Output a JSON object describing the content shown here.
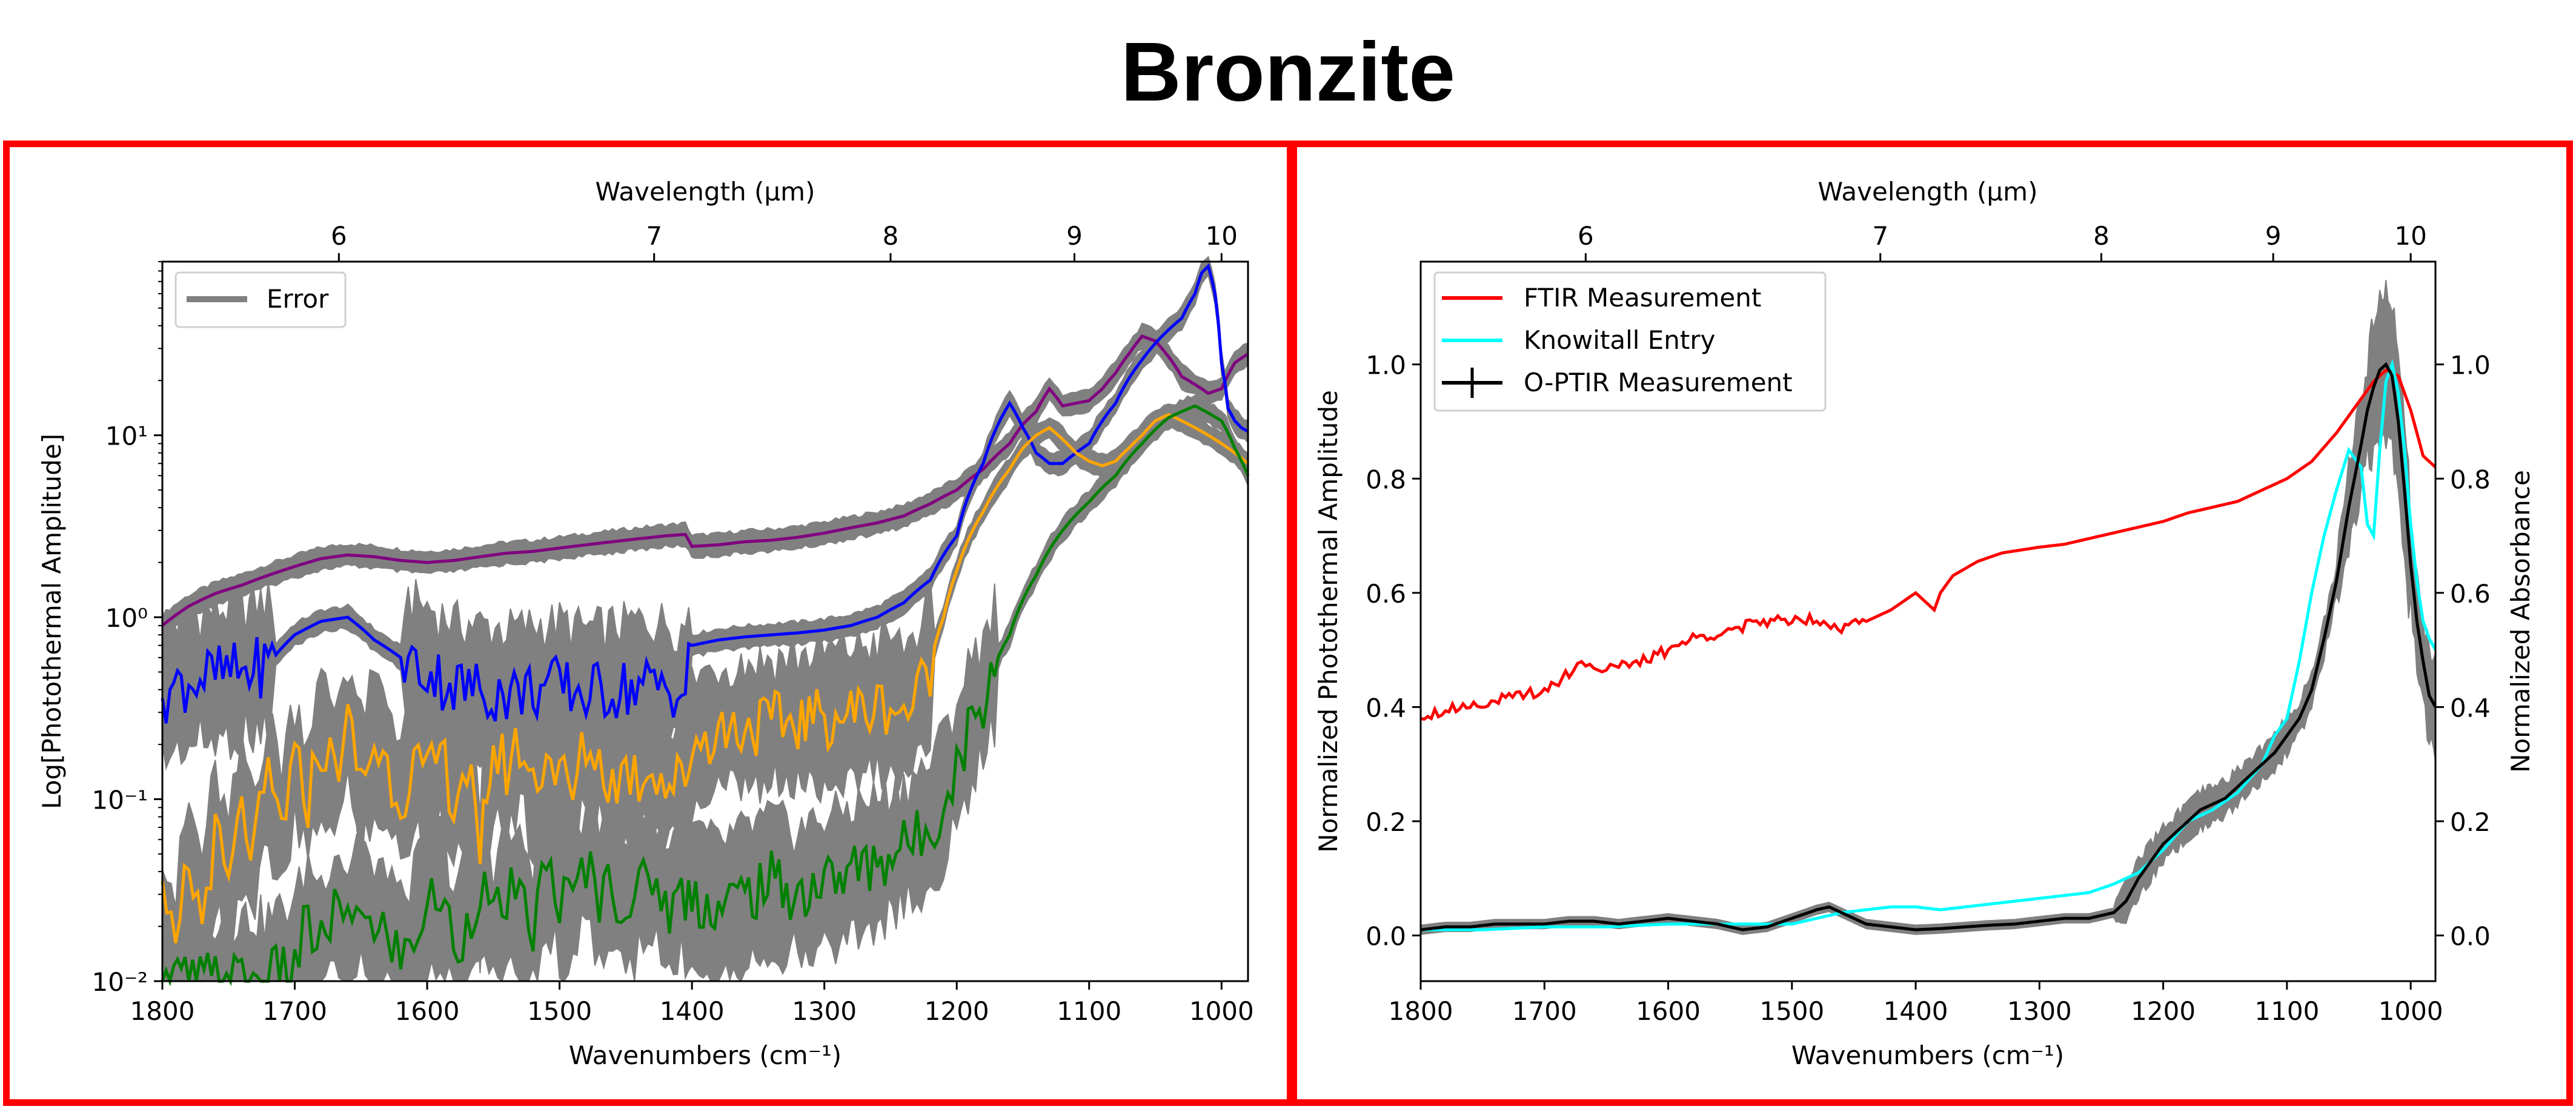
{
  "title": "Bronzite",
  "left_panel": {
    "legend": [
      "Error"
    ],
    "ylabel": "Log[Photothermal Amplitude]",
    "xlabel": "Wavenumbers (cm⁻¹)",
    "top_xlabel": "Wavelength (μm)"
  },
  "right_panel": {
    "legend": [
      "FTIR Measurement",
      "Knowitall Entry",
      "O-PTIR Measurement"
    ],
    "ylabel_left": "Normalized Photothermal Amplitude",
    "ylabel_right": "Normalized Absorbance",
    "xlabel": "Wavenumbers (cm⁻¹)",
    "top_xlabel": "Wavelength (μm)"
  },
  "chart_data": [
    {
      "type": "line",
      "xlabel": "Wavenumbers (cm⁻¹)",
      "ylabel": "Log[Photothermal Amplitude]",
      "top_xlabel": "Wavelength (μm)",
      "xlim": [
        1800,
        980
      ],
      "ylim": [
        0.01,
        90
      ],
      "yscale": "log",
      "x_ticks": [
        1800,
        1700,
        1600,
        1500,
        1400,
        1300,
        1200,
        1100,
        1000
      ],
      "y_ticks": [
        0.01,
        0.1,
        1,
        10
      ],
      "y_tick_labels": [
        "10⁻²",
        "10⁻¹",
        "10⁰",
        "10¹"
      ],
      "top_ticks": [
        6,
        7,
        8,
        9,
        10
      ],
      "legend": [
        "Error"
      ],
      "legend_position": "top-left",
      "colors": {
        "purple": "#800080",
        "blue": "#0000ff",
        "orange": "#ffa500",
        "green": "#008000",
        "error": "#808080"
      },
      "series": [
        {
          "color": "purple",
          "x": [
            1800,
            1780,
            1760,
            1740,
            1720,
            1700,
            1680,
            1660,
            1640,
            1620,
            1600,
            1580,
            1560,
            1540,
            1520,
            1500,
            1480,
            1460,
            1440,
            1420,
            1405,
            1400,
            1380,
            1360,
            1340,
            1320,
            1300,
            1280,
            1260,
            1240,
            1220,
            1200,
            1180,
            1160,
            1150,
            1140,
            1130,
            1120,
            1110,
            1100,
            1090,
            1080,
            1070,
            1060,
            1050,
            1040,
            1030,
            1020,
            1010,
            1000,
            990,
            980
          ],
          "y": [
            0.9,
            1.15,
            1.35,
            1.5,
            1.7,
            1.9,
            2.1,
            2.2,
            2.15,
            2.05,
            2.0,
            2.05,
            2.15,
            2.25,
            2.3,
            2.4,
            2.5,
            2.6,
            2.7,
            2.8,
            2.85,
            2.45,
            2.5,
            2.6,
            2.65,
            2.75,
            2.9,
            3.1,
            3.3,
            3.6,
            4.2,
            5.0,
            6.5,
            9.0,
            11.5,
            13.5,
            18.0,
            14.5,
            15.0,
            15.5,
            18.0,
            22.0,
            28.0,
            35.0,
            33.0,
            27.0,
            21.0,
            19.0,
            17.0,
            18.0,
            25.0,
            28.0
          ]
        },
        {
          "color": "blue",
          "x": [
            1800,
            1780,
            1760,
            1740,
            1720,
            1700,
            1680,
            1660,
            1640,
            1620,
            1600,
            1580,
            1560,
            1540,
            1520,
            1500,
            1480,
            1460,
            1440,
            1420,
            1405,
            1400,
            1380,
            1360,
            1340,
            1320,
            1300,
            1280,
            1260,
            1240,
            1220,
            1200,
            1180,
            1170,
            1160,
            1150,
            1140,
            1130,
            1120,
            1100,
            1080,
            1060,
            1050,
            1040,
            1030,
            1020,
            1015,
            1010,
            1005,
            1000,
            995,
            990,
            985,
            980
          ],
          "y": [
            0.38,
            0.45,
            0.48,
            0.5,
            0.55,
            0.8,
            0.95,
            1.0,
            0.75,
            0.6,
            0.5,
            0.42,
            0.4,
            0.38,
            0.4,
            0.42,
            0.38,
            0.4,
            0.42,
            0.42,
            0.38,
            0.7,
            0.75,
            0.78,
            0.8,
            0.82,
            0.85,
            0.9,
            1.0,
            1.2,
            1.6,
            2.8,
            7.0,
            11.0,
            15.0,
            11.0,
            8.0,
            7.0,
            7.0,
            9.0,
            15.0,
            26.0,
            32.0,
            38.0,
            44.0,
            60.0,
            78.0,
            85.0,
            60.0,
            25.0,
            14.0,
            12.0,
            11.0,
            10.5
          ]
        },
        {
          "color": "orange",
          "x": [
            1800,
            1790,
            1780,
            1770,
            1760,
            1750,
            1740,
            1730,
            1720,
            1710,
            1700,
            1690,
            1680,
            1670,
            1660,
            1650,
            1640,
            1630,
            1620,
            1610,
            1600,
            1590,
            1580,
            1570,
            1560,
            1555,
            1550,
            1540,
            1530,
            1520,
            1510,
            1500,
            1490,
            1480,
            1470,
            1460,
            1450,
            1440,
            1430,
            1420,
            1405,
            1400,
            1390,
            1380,
            1360,
            1340,
            1320,
            1300,
            1280,
            1260,
            1250,
            1240,
            1230,
            1220,
            1210,
            1200,
            1180,
            1160,
            1150,
            1140,
            1130,
            1120,
            1110,
            1100,
            1090,
            1080,
            1070,
            1060,
            1050,
            1040,
            1030,
            1020,
            1010,
            1000,
            990,
            980
          ],
          "y": [
            0.025,
            0.012,
            0.04,
            0.02,
            0.06,
            0.03,
            0.08,
            0.05,
            0.12,
            0.07,
            0.15,
            0.1,
            0.2,
            0.14,
            0.25,
            0.12,
            0.2,
            0.15,
            0.1,
            0.16,
            0.12,
            0.18,
            0.1,
            0.15,
            0.03,
            0.12,
            0.18,
            0.15,
            0.2,
            0.12,
            0.18,
            0.14,
            0.1,
            0.2,
            0.16,
            0.12,
            0.15,
            0.13,
            0.16,
            0.12,
            0.13,
            0.2,
            0.22,
            0.24,
            0.25,
            0.26,
            0.27,
            0.28,
            0.3,
            0.32,
            0.34,
            0.3,
            0.36,
            0.55,
            1.0,
            1.8,
            3.8,
            6.5,
            8.5,
            10.0,
            11.0,
            9.5,
            8.0,
            7.2,
            6.8,
            7.2,
            8.5,
            10.0,
            12.0,
            13.0,
            12.0,
            11.0,
            10.0,
            9.0,
            8.0,
            7.0
          ]
        },
        {
          "color": "green",
          "x": [
            1800,
            1780,
            1760,
            1740,
            1720,
            1700,
            1690,
            1680,
            1670,
            1660,
            1650,
            1640,
            1630,
            1620,
            1610,
            1600,
            1590,
            1580,
            1570,
            1560,
            1550,
            1540,
            1530,
            1520,
            1510,
            1500,
            1490,
            1480,
            1470,
            1460,
            1450,
            1440,
            1430,
            1420,
            1405,
            1400,
            1380,
            1360,
            1340,
            1320,
            1300,
            1280,
            1260,
            1240,
            1230,
            1220,
            1210,
            1200,
            1180,
            1160,
            1140,
            1120,
            1100,
            1080,
            1060,
            1040,
            1020,
            1000,
            990,
            980
          ],
          "y": [
            0.01,
            0.01,
            0.01,
            0.01,
            0.01,
            0.012,
            0.02,
            0.015,
            0.025,
            0.018,
            0.03,
            0.015,
            0.02,
            0.012,
            0.018,
            0.025,
            0.03,
            0.015,
            0.02,
            0.035,
            0.02,
            0.03,
            0.025,
            0.02,
            0.04,
            0.03,
            0.025,
            0.045,
            0.03,
            0.035,
            0.025,
            0.03,
            0.04,
            0.025,
            0.03,
            0.03,
            0.025,
            0.03,
            0.035,
            0.03,
            0.035,
            0.04,
            0.045,
            0.055,
            0.06,
            0.07,
            0.1,
            0.15,
            0.35,
            0.8,
            1.7,
            3.0,
            4.3,
            6.0,
            9.0,
            12.5,
            14.5,
            12.0,
            8.5,
            6.0
          ]
        }
      ]
    },
    {
      "type": "line",
      "xlabel": "Wavenumbers (cm⁻¹)",
      "ylabel": "Normalized Photothermal Amplitude",
      "ylabel_right": "Normalized Absorbance",
      "top_xlabel": "Wavelength (μm)",
      "xlim": [
        1800,
        980
      ],
      "ylim": [
        -0.08,
        1.18
      ],
      "ylim_right": [
        -0.08,
        1.18
      ],
      "x_ticks": [
        1800,
        1700,
        1600,
        1500,
        1400,
        1300,
        1200,
        1100,
        1000
      ],
      "y_ticks": [
        0.0,
        0.2,
        0.4,
        0.6,
        0.8,
        1.0
      ],
      "y_ticks_right": [
        0.0,
        0.2,
        0.4,
        0.6,
        0.8,
        1.0
      ],
      "top_ticks": [
        6,
        7,
        8,
        9,
        10
      ],
      "legend": [
        "FTIR Measurement",
        "Knowitall Entry",
        "O-PTIR Measurement"
      ],
      "legend_position": "top-left",
      "colors": {
        "ftir": "#ff0000",
        "knowitall": "#00ffff",
        "optir": "#000000",
        "error": "#808080"
      },
      "series": [
        {
          "name": "FTIR Measurement",
          "color": "ftir",
          "x": [
            1800,
            1780,
            1760,
            1740,
            1720,
            1700,
            1680,
            1670,
            1660,
            1650,
            1640,
            1620,
            1600,
            1580,
            1560,
            1540,
            1520,
            1500,
            1480,
            1460,
            1440,
            1420,
            1400,
            1390,
            1385,
            1380,
            1370,
            1350,
            1330,
            1300,
            1280,
            1260,
            1240,
            1220,
            1200,
            1180,
            1160,
            1140,
            1120,
            1100,
            1080,
            1060,
            1050,
            1040,
            1030,
            1020,
            1010,
            1000,
            990,
            980
          ],
          "y": [
            0.385,
            0.395,
            0.405,
            0.41,
            0.42,
            0.43,
            0.46,
            0.48,
            0.47,
            0.47,
            0.47,
            0.48,
            0.5,
            0.52,
            0.53,
            0.54,
            0.55,
            0.555,
            0.555,
            0.54,
            0.55,
            0.57,
            0.6,
            0.58,
            0.57,
            0.6,
            0.63,
            0.655,
            0.67,
            0.68,
            0.685,
            0.695,
            0.705,
            0.715,
            0.725,
            0.74,
            0.75,
            0.76,
            0.78,
            0.8,
            0.83,
            0.88,
            0.91,
            0.94,
            0.97,
            0.99,
            0.98,
            0.92,
            0.84,
            0.82
          ]
        },
        {
          "name": "Knowitall Entry",
          "color": "knowitall",
          "x": [
            1800,
            1750,
            1700,
            1650,
            1600,
            1550,
            1500,
            1480,
            1460,
            1440,
            1420,
            1400,
            1380,
            1360,
            1340,
            1320,
            1300,
            1280,
            1260,
            1240,
            1220,
            1200,
            1180,
            1160,
            1140,
            1120,
            1110,
            1100,
            1090,
            1080,
            1070,
            1060,
            1050,
            1040,
            1035,
            1030,
            1025,
            1020,
            1015,
            1010,
            1005,
            1000,
            995,
            990,
            985,
            980
          ],
          "y": [
            0.01,
            0.01,
            0.015,
            0.015,
            0.02,
            0.02,
            0.02,
            0.03,
            0.04,
            0.045,
            0.05,
            0.05,
            0.045,
            0.05,
            0.055,
            0.06,
            0.065,
            0.07,
            0.075,
            0.09,
            0.11,
            0.15,
            0.2,
            0.22,
            0.25,
            0.3,
            0.35,
            0.38,
            0.48,
            0.6,
            0.7,
            0.78,
            0.85,
            0.82,
            0.72,
            0.7,
            0.85,
            0.97,
            1.0,
            0.95,
            0.85,
            0.72,
            0.62,
            0.55,
            0.52,
            0.5
          ]
        },
        {
          "name": "O-PTIR Measurement",
          "color": "optir",
          "x": [
            1800,
            1780,
            1760,
            1740,
            1720,
            1700,
            1680,
            1660,
            1640,
            1620,
            1600,
            1580,
            1560,
            1540,
            1520,
            1500,
            1480,
            1470,
            1460,
            1450,
            1440,
            1420,
            1400,
            1380,
            1360,
            1340,
            1320,
            1300,
            1280,
            1260,
            1240,
            1230,
            1220,
            1210,
            1200,
            1190,
            1180,
            1170,
            1160,
            1150,
            1140,
            1130,
            1120,
            1110,
            1100,
            1090,
            1080,
            1070,
            1060,
            1050,
            1040,
            1035,
            1030,
            1025,
            1020,
            1015,
            1010,
            1005,
            1000,
            995,
            990,
            985,
            980
          ],
          "y": [
            0.01,
            0.015,
            0.015,
            0.02,
            0.02,
            0.02,
            0.025,
            0.025,
            0.02,
            0.025,
            0.03,
            0.025,
            0.02,
            0.01,
            0.015,
            0.03,
            0.045,
            0.05,
            0.04,
            0.03,
            0.02,
            0.015,
            0.01,
            0.012,
            0.015,
            0.018,
            0.02,
            0.025,
            0.03,
            0.03,
            0.04,
            0.06,
            0.1,
            0.13,
            0.16,
            0.18,
            0.2,
            0.22,
            0.23,
            0.24,
            0.26,
            0.28,
            0.3,
            0.32,
            0.35,
            0.38,
            0.43,
            0.52,
            0.62,
            0.75,
            0.86,
            0.92,
            0.96,
            0.99,
            1.0,
            0.98,
            0.9,
            0.78,
            0.65,
            0.55,
            0.48,
            0.42,
            0.4
          ]
        }
      ]
    }
  ]
}
